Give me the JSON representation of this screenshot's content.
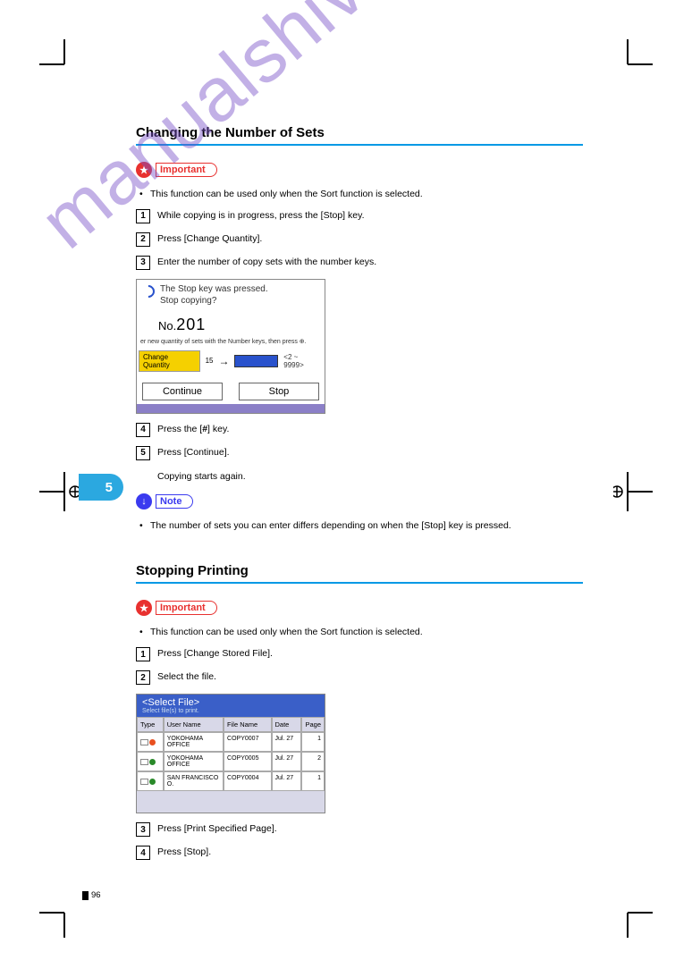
{
  "watermark": "manualshive.com",
  "sideTab": "5",
  "pageNumber": "96",
  "section1": {
    "title": "Changing the Number of Sets",
    "important": "Important",
    "importantBullet": "This function can be used only when the Sort function is selected.",
    "step1": "While copying is in progress, press the [Stop] key.",
    "step2": "Press [Change Quantity].",
    "step3": "Enter the number of copy sets with the number keys.",
    "ss": {
      "line1": "The Stop key was pressed.",
      "line2": "Stop copying?",
      "noLabel": "No.",
      "noValue": "201",
      "small": "er new quantity of sets with the Number keys, then press ⊕.",
      "chgLabel": "Change Quantity",
      "qty": "15",
      "range": "<2 ~ 9999>",
      "btnContinue": "Continue",
      "btnStop": "Stop"
    },
    "step4_pre": "Press the [",
    "step4_key": "#",
    "step4_post": "] key.",
    "step5": "Press [Continue].",
    "step5_after": "Copying starts again.",
    "note": "Note",
    "noteBullet": "The number of sets you can enter differs depending on when the [Stop] key is pressed."
  },
  "section2": {
    "title": "Stopping Printing",
    "important": "Important",
    "importantBullet": "This function can be used only when the Sort function is selected.",
    "step1": "Press [Change Stored File].",
    "step2": "Select the file.",
    "ss": {
      "title": "<Select File>",
      "sub": "Select file(s) to print.",
      "colType": "Type",
      "colUser": "User Name",
      "colFile": "File Name",
      "colDate": "Date",
      "colPage": "Page",
      "rows": [
        {
          "user": "YOKOHAMA OFFICE",
          "file": "COPY0007",
          "date": "Jul. 27",
          "page": "1",
          "dotColor": "#e85020"
        },
        {
          "user": "YOKOHAMA OFFICE",
          "file": "COPY0005",
          "date": "Jul. 27",
          "page": "2",
          "dotColor": "#2a8a2a"
        },
        {
          "user": "SAN FRANCISCO O.",
          "file": "COPY0004",
          "date": "Jul. 27",
          "page": "1",
          "dotColor": "#2a8a2a"
        }
      ]
    },
    "step3": "Press [Print Specified Page].",
    "step4": "Press [Stop]."
  }
}
